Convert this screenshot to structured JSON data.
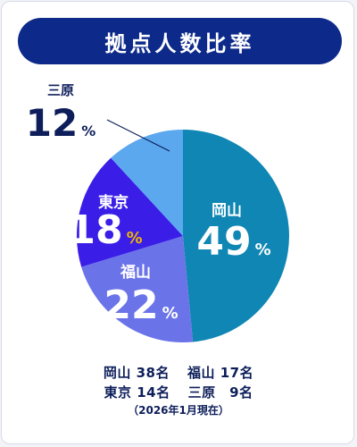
{
  "header": {
    "title": "拠点人数比率"
  },
  "chart_data": {
    "type": "pie",
    "title": "拠点人数比率",
    "slices": [
      {
        "label": "岡山",
        "value": 49,
        "unit": "%",
        "color": "#0f86b3"
      },
      {
        "label": "福山",
        "value": 22,
        "unit": "%",
        "color": "#6b73e8"
      },
      {
        "label": "東京",
        "value": 18,
        "unit": "%",
        "color": "#3a1ee8"
      },
      {
        "label": "三原",
        "value": 12,
        "unit": "%",
        "color": "#5ba8ef"
      }
    ]
  },
  "footer": {
    "line1": [
      "岡山 38名",
      "福山 17名"
    ],
    "line2": [
      "東京 14名",
      "三原　9名"
    ],
    "note": "（2026年1月現在）"
  }
}
